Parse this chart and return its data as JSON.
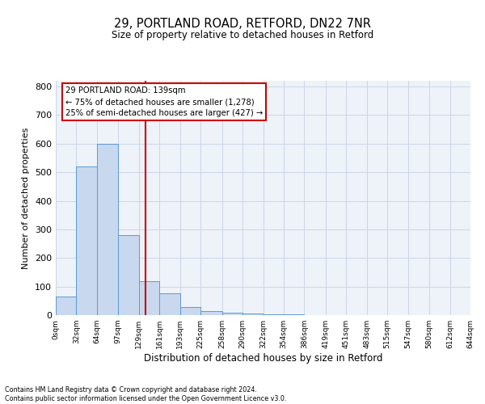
{
  "title1": "29, PORTLAND ROAD, RETFORD, DN22 7NR",
  "title2": "Size of property relative to detached houses in Retford",
  "xlabel": "Distribution of detached houses by size in Retford",
  "ylabel": "Number of detached properties",
  "bar_edges": [
    0,
    32,
    64,
    97,
    129,
    161,
    193,
    225,
    258,
    290,
    322,
    354,
    386,
    419,
    451,
    483,
    515,
    547,
    580,
    612,
    644
  ],
  "bar_heights": [
    65,
    520,
    600,
    280,
    120,
    75,
    28,
    13,
    8,
    5,
    3,
    2,
    1,
    0,
    0,
    0,
    0,
    0,
    0,
    0
  ],
  "tick_labels": [
    "0sqm",
    "32sqm",
    "64sqm",
    "97sqm",
    "129sqm",
    "161sqm",
    "193sqm",
    "225sqm",
    "258sqm",
    "290sqm",
    "322sqm",
    "354sqm",
    "386sqm",
    "419sqm",
    "451sqm",
    "483sqm",
    "515sqm",
    "547sqm",
    "580sqm",
    "612sqm",
    "644sqm"
  ],
  "bar_facecolor": "#c8d8ee",
  "bar_edgecolor": "#5b9bd5",
  "vline_x": 139,
  "vline_color": "#cc0000",
  "annotation_line1": "29 PORTLAND ROAD: 139sqm",
  "annotation_line2": "← 75% of detached houses are smaller (1,278)",
  "annotation_line3": "25% of semi-detached houses are larger (427) →",
  "annotation_box_facecolor": "white",
  "annotation_box_edgecolor": "#cc0000",
  "ylim": [
    0,
    820
  ],
  "yticks": [
    0,
    100,
    200,
    300,
    400,
    500,
    600,
    700,
    800
  ],
  "grid_color": "#ccd6e8",
  "background_color": "#eef2f9",
  "footer_line1": "Contains HM Land Registry data © Crown copyright and database right 2024.",
  "footer_line2": "Contains public sector information licensed under the Open Government Licence v3.0."
}
